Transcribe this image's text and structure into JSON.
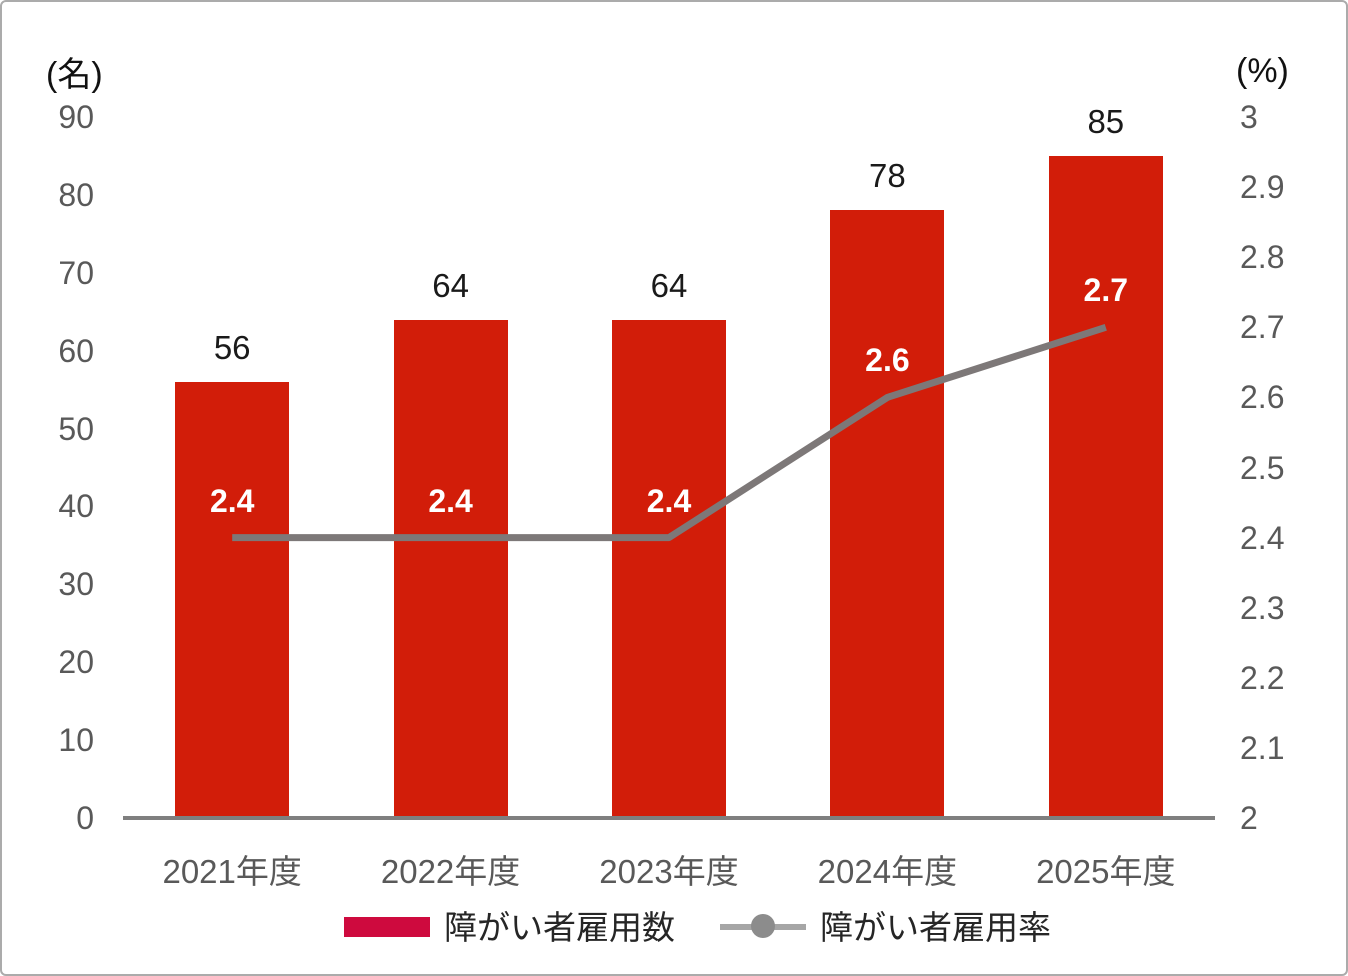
{
  "chart_data": {
    "type": "bar",
    "subtype": "combo-bar-line",
    "categories": [
      "2021年度",
      "2022年度",
      "2023年度",
      "2024年度",
      "2025年度"
    ],
    "series": [
      {
        "name": "障がい者雇用数",
        "type": "bar",
        "axis": "left",
        "values": [
          56,
          64,
          64,
          78,
          85
        ],
        "data_labels": [
          "56",
          "64",
          "64",
          "78",
          "85"
        ],
        "color": "#d21d09",
        "label_color": "#1a1a1a"
      },
      {
        "name": "障がい者雇用率",
        "type": "line",
        "axis": "right",
        "values": [
          2.4,
          2.4,
          2.4,
          2.6,
          2.7
        ],
        "data_labels": [
          "2.4",
          "2.4",
          "2.4",
          "2.6",
          "2.7"
        ],
        "color": "#7d7878",
        "label_color": "#ffffff"
      }
    ],
    "left_axis": {
      "title": "(名)",
      "min": 0,
      "max": 90,
      "step": 10,
      "ticks": [
        "90",
        "80",
        "70",
        "60",
        "50",
        "40",
        "30",
        "20",
        "10",
        "0"
      ]
    },
    "right_axis": {
      "title": "(%)",
      "min": 2,
      "max": 3,
      "step": 0.1,
      "ticks": [
        "3",
        "2.9",
        "2.8",
        "2.7",
        "2.6",
        "2.5",
        "2.4",
        "2.3",
        "2.2",
        "2.1",
        "2"
      ]
    },
    "legend": [
      {
        "label": "障がい者雇用数",
        "swatch": "bar",
        "color": "#ce0a3e"
      },
      {
        "label": "障がい者雇用率",
        "swatch": "line-dot",
        "line_color": "#a6a6a6",
        "dot_color": "#8c8c8c"
      }
    ],
    "layout_hints": {
      "grid": "off",
      "legend_position": "bottom",
      "baseline_color": "#7f7f7f",
      "tick_label_color": "#595959",
      "background": "#ffffff",
      "border_color": "#ababab"
    }
  }
}
